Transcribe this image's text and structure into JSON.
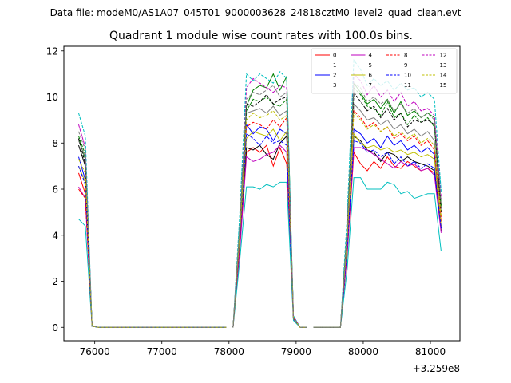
{
  "chart_data": {
    "type": "line",
    "suptitle": "Data file: modeM0/AS1A07_045T01_9000003628_24818cztM0_level2_quad_clean.evt",
    "title": "Quadrant 1 module wise count rates with 100.0s bins.",
    "xlabel": "",
    "ylabel": "",
    "x_offset_label": "+3.259e8",
    "xlim": [
      75540,
      81440
    ],
    "ylim": [
      -0.58,
      12.2
    ],
    "xticks": [
      76000,
      77000,
      78000,
      79000,
      80000,
      81000
    ],
    "yticks": [
      0,
      2,
      4,
      6,
      8,
      10,
      12
    ],
    "grid": false,
    "legend_position": "top-right",
    "legend_columns": 4,
    "x": [
      75760,
      75860,
      75960,
      76060,
      76160,
      76260,
      76360,
      76460,
      76560,
      76660,
      76760,
      76860,
      76960,
      77060,
      77160,
      77260,
      77360,
      77460,
      77560,
      77660,
      77760,
      77860,
      77960,
      78060,
      78160,
      78260,
      78360,
      78460,
      78560,
      78660,
      78760,
      78860,
      78960,
      79060,
      79160,
      79260,
      79360,
      79460,
      79560,
      79660,
      79760,
      79860,
      79960,
      80060,
      80160,
      80260,
      80360,
      80460,
      80560,
      80660,
      80760,
      80860,
      80960,
      81060,
      81160
    ],
    "segments": [
      [
        0,
        23
      ],
      [
        23,
        35
      ],
      [
        35,
        55
      ]
    ],
    "series": [
      {
        "name": "0",
        "color": "#ff0000",
        "dash": false,
        "values": [
          6.7,
          5.8,
          0.05,
          0,
          0,
          0,
          0,
          0,
          0,
          0,
          0,
          0,
          0,
          0,
          0,
          0,
          0,
          0,
          0,
          0,
          0,
          0,
          0,
          0,
          3.6,
          7.6,
          7.8,
          7.6,
          7.9,
          7.0,
          7.8,
          7.1,
          0.35,
          0,
          0,
          0,
          0,
          0,
          0,
          0,
          3.1,
          7.6,
          7.1,
          6.8,
          7.2,
          6.9,
          7.4,
          7.0,
          6.9,
          7.2,
          7.0,
          6.8,
          6.9,
          6.7,
          4.6
        ]
      },
      {
        "name": "1",
        "color": "#008000",
        "dash": false,
        "values": [
          8.2,
          7.3,
          0.05,
          0,
          0,
          0,
          0,
          0,
          0,
          0,
          0,
          0,
          0,
          0,
          0,
          0,
          0,
          0,
          0,
          0,
          0,
          0,
          0,
          0,
          4.4,
          9.6,
          10.3,
          10.5,
          10.4,
          11.0,
          10.3,
          10.9,
          0.45,
          0,
          0,
          0,
          0,
          0,
          0,
          0,
          4.3,
          10.6,
          10.2,
          9.7,
          9.9,
          9.5,
          9.9,
          9.3,
          9.8,
          9.2,
          9.4,
          9.1,
          9.3,
          9.1,
          5.3
        ]
      },
      {
        "name": "2",
        "color": "#0000ff",
        "dash": false,
        "values": [
          7.4,
          6.4,
          0.05,
          0,
          0,
          0,
          0,
          0,
          0,
          0,
          0,
          0,
          0,
          0,
          0,
          0,
          0,
          0,
          0,
          0,
          0,
          0,
          0,
          0,
          3.9,
          8.8,
          8.4,
          8.7,
          8.6,
          8.1,
          8.6,
          8.4,
          0.4,
          0,
          0,
          0,
          0,
          0,
          0,
          0,
          3.4,
          8.6,
          8.4,
          8.0,
          8.2,
          7.8,
          8.3,
          7.9,
          8.1,
          7.7,
          7.9,
          7.6,
          7.8,
          7.5,
          4.3
        ]
      },
      {
        "name": "3",
        "color": "#000000",
        "dash": false,
        "values": [
          7.9,
          7.0,
          0.05,
          0,
          0,
          0,
          0,
          0,
          0,
          0,
          0,
          0,
          0,
          0,
          0,
          0,
          0,
          0,
          0,
          0,
          0,
          0,
          0,
          0,
          3.9,
          7.8,
          7.7,
          7.9,
          7.5,
          7.3,
          8.0,
          8.3,
          0.4,
          0,
          0,
          0,
          0,
          0,
          0,
          0,
          3.3,
          8.3,
          8.1,
          7.7,
          7.6,
          7.2,
          7.6,
          7.5,
          7.2,
          7.4,
          7.2,
          7.1,
          7.0,
          6.8,
          4.2
        ]
      },
      {
        "name": "4",
        "color": "#bf00bf",
        "dash": false,
        "values": [
          6.1,
          5.6,
          0.05,
          0,
          0,
          0,
          0,
          0,
          0,
          0,
          0,
          0,
          0,
          0,
          0,
          0,
          0,
          0,
          0,
          0,
          0,
          0,
          0,
          0,
          3.3,
          7.4,
          7.2,
          7.3,
          7.5,
          7.6,
          7.9,
          7.6,
          0.35,
          0,
          0,
          0,
          0,
          0,
          0,
          0,
          3.2,
          7.8,
          7.8,
          7.7,
          7.5,
          7.3,
          7.1,
          6.9,
          7.2,
          7.0,
          7.1,
          6.8,
          6.9,
          6.6,
          4.1
        ]
      },
      {
        "name": "5",
        "color": "#00bfbf",
        "dash": false,
        "values": [
          4.7,
          4.4,
          0.05,
          0,
          0,
          0,
          0,
          0,
          0,
          0,
          0,
          0,
          0,
          0,
          0,
          0,
          0,
          0,
          0,
          0,
          0,
          0,
          0,
          0,
          2.9,
          6.1,
          6.1,
          6.0,
          6.2,
          6.1,
          6.3,
          6.3,
          0.3,
          0,
          0,
          0,
          0,
          0,
          0,
          0,
          2.5,
          6.5,
          6.5,
          6.0,
          6.0,
          6.0,
          6.3,
          6.2,
          5.8,
          5.9,
          5.6,
          5.7,
          5.8,
          5.8,
          3.3
        ]
      },
      {
        "name": "6",
        "color": "#bfbf00",
        "dash": false,
        "values": [
          7.0,
          6.3,
          0.05,
          0,
          0,
          0,
          0,
          0,
          0,
          0,
          0,
          0,
          0,
          0,
          0,
          0,
          0,
          0,
          0,
          0,
          0,
          0,
          0,
          0,
          3.9,
          8.2,
          8.5,
          8.4,
          8.3,
          8.6,
          8.1,
          8.5,
          0.4,
          0,
          0,
          0,
          0,
          0,
          0,
          0,
          3.7,
          8.4,
          8.0,
          7.8,
          7.9,
          7.7,
          7.8,
          7.6,
          7.7,
          7.5,
          7.6,
          7.4,
          7.5,
          7.3,
          4.4
        ]
      },
      {
        "name": "7",
        "color": "#808080",
        "dash": false,
        "values": [
          8.1,
          7.4,
          0.05,
          0,
          0,
          0,
          0,
          0,
          0,
          0,
          0,
          0,
          0,
          0,
          0,
          0,
          0,
          0,
          0,
          0,
          0,
          0,
          0,
          0,
          4.2,
          9.3,
          9.4,
          9.5,
          9.3,
          9.6,
          9.2,
          9.4,
          0.4,
          0,
          0,
          0,
          0,
          0,
          0,
          0,
          3.9,
          9.7,
          9.4,
          9.0,
          9.1,
          8.8,
          9.0,
          8.6,
          8.8,
          8.4,
          8.6,
          8.3,
          8.5,
          8.1,
          5.0
        ]
      },
      {
        "name": "8",
        "color": "#ff0000",
        "dash": true,
        "values": [
          6.0,
          5.6,
          0.05,
          0,
          0,
          0,
          0,
          0,
          0,
          0,
          0,
          0,
          0,
          0,
          0,
          0,
          0,
          0,
          0,
          0,
          0,
          0,
          0,
          0,
          3.6,
          8.7,
          8.9,
          8.8,
          8.6,
          9.0,
          8.7,
          9.1,
          0.4,
          0,
          0,
          0,
          0,
          0,
          0,
          0,
          3.7,
          9.4,
          9.1,
          8.7,
          8.9,
          8.5,
          8.7,
          8.2,
          8.4,
          8.1,
          8.3,
          7.9,
          8.1,
          7.7,
          4.8
        ]
      },
      {
        "name": "9",
        "color": "#008000",
        "dash": true,
        "values": [
          8.3,
          7.5,
          0.05,
          0,
          0,
          0,
          0,
          0,
          0,
          0,
          0,
          0,
          0,
          0,
          0,
          0,
          0,
          0,
          0,
          0,
          0,
          0,
          0,
          0,
          4.3,
          9.4,
          9.9,
          9.8,
          10.0,
          9.7,
          9.6,
          9.9,
          0.45,
          0,
          0,
          0,
          0,
          0,
          0,
          0,
          4.1,
          10.4,
          10.1,
          9.6,
          9.5,
          9.2,
          9.8,
          9.1,
          9.3,
          8.8,
          9.2,
          8.9,
          9.1,
          8.7,
          5.2
        ]
      },
      {
        "name": "10",
        "color": "#0000ff",
        "dash": true,
        "values": [
          7.0,
          6.2,
          0.05,
          0,
          0,
          0,
          0,
          0,
          0,
          0,
          0,
          0,
          0,
          0,
          0,
          0,
          0,
          0,
          0,
          0,
          0,
          0,
          0,
          0,
          3.8,
          8.4,
          8.2,
          7.9,
          8.3,
          8.0,
          8.1,
          7.9,
          0.4,
          0,
          0,
          0,
          0,
          0,
          0,
          0,
          3.4,
          8.1,
          8.0,
          7.6,
          7.7,
          7.4,
          7.6,
          7.1,
          7.4,
          7.0,
          7.2,
          6.9,
          7.1,
          6.9,
          4.3
        ]
      },
      {
        "name": "11",
        "color": "#000000",
        "dash": true,
        "values": [
          8.2,
          7.1,
          0.05,
          0,
          0,
          0,
          0,
          0,
          0,
          0,
          0,
          0,
          0,
          0,
          0,
          0,
          0,
          0,
          0,
          0,
          0,
          0,
          0,
          0,
          4.1,
          9.7,
          9.6,
          9.8,
          10.1,
          9.7,
          9.9,
          10.0,
          0.45,
          0,
          0,
          0,
          0,
          0,
          0,
          0,
          4.0,
          10.2,
          9.8,
          9.4,
          9.6,
          9.1,
          9.5,
          9.0,
          9.3,
          8.7,
          9.0,
          8.9,
          9.0,
          8.8,
          5.0
        ]
      },
      {
        "name": "12",
        "color": "#bf00bf",
        "dash": true,
        "values": [
          8.8,
          7.8,
          0.05,
          0,
          0,
          0,
          0,
          0,
          0,
          0,
          0,
          0,
          0,
          0,
          0,
          0,
          0,
          0,
          0,
          0,
          0,
          0,
          0,
          0,
          4.6,
          10.4,
          10.8,
          10.6,
          10.4,
          10.2,
          10.5,
          10.4,
          0.5,
          0,
          0,
          0,
          0,
          0,
          0,
          0,
          4.5,
          11.0,
          10.7,
          10.1,
          10.5,
          10.0,
          10.3,
          9.8,
          10.2,
          9.6,
          9.8,
          9.4,
          9.5,
          9.2,
          5.6
        ]
      },
      {
        "name": "13",
        "color": "#00bfbf",
        "dash": true,
        "values": [
          9.3,
          8.3,
          0.05,
          0,
          0,
          0,
          0,
          0,
          0,
          0,
          0,
          0,
          0,
          0,
          0,
          0,
          0,
          0,
          0,
          0,
          0,
          0,
          0,
          0,
          4.9,
          11.0,
          10.7,
          11.0,
          10.8,
          10.6,
          11.1,
          10.8,
          0.5,
          0,
          0,
          0,
          0,
          0,
          0,
          0,
          4.8,
          11.6,
          11.2,
          10.5,
          10.8,
          10.5,
          10.7,
          10.3,
          10.6,
          10.3,
          10.4,
          10.0,
          10.2,
          9.9,
          5.9
        ]
      },
      {
        "name": "14",
        "color": "#bfbf00",
        "dash": true,
        "values": [
          7.3,
          6.7,
          0.05,
          0,
          0,
          0,
          0,
          0,
          0,
          0,
          0,
          0,
          0,
          0,
          0,
          0,
          0,
          0,
          0,
          0,
          0,
          0,
          0,
          0,
          4.0,
          9.0,
          9.3,
          9.1,
          9.2,
          9.4,
          9.0,
          9.2,
          0.4,
          0,
          0,
          0,
          0,
          0,
          0,
          0,
          3.8,
          9.3,
          9.0,
          8.6,
          8.8,
          8.5,
          8.7,
          8.3,
          8.5,
          8.2,
          8.4,
          8.0,
          8.2,
          7.9,
          4.8
        ]
      },
      {
        "name": "15",
        "color": "#808080",
        "dash": true,
        "values": [
          8.5,
          7.7,
          0.05,
          0,
          0,
          0,
          0,
          0,
          0,
          0,
          0,
          0,
          0,
          0,
          0,
          0,
          0,
          0,
          0,
          0,
          0,
          0,
          0,
          0,
          4.4,
          9.9,
          10.2,
          10.1,
          10.3,
          10.5,
          10.0,
          10.2,
          0.45,
          0,
          0,
          0,
          0,
          0,
          0,
          0,
          4.2,
          10.6,
          10.4,
          9.8,
          10.0,
          9.7,
          9.9,
          9.4,
          9.7,
          9.3,
          9.5,
          9.1,
          9.3,
          9.0,
          5.3
        ]
      }
    ]
  }
}
